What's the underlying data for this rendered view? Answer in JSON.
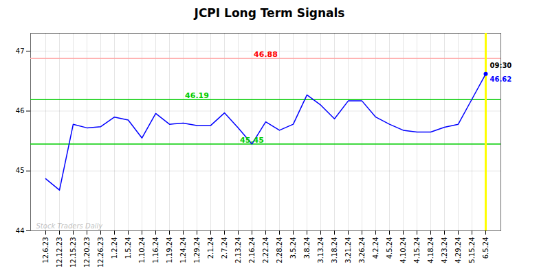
{
  "chart_data": {
    "type": "line",
    "title": "JCPI Long Term Signals",
    "categories": [
      "12.6.23",
      "12.12.23",
      "12.15.23",
      "12.20.23",
      "12.26.23",
      "1.2.24",
      "1.5.24",
      "1.10.24",
      "1.16.24",
      "1.19.24",
      "1.24.24",
      "1.29.24",
      "2.1.24",
      "2.7.24",
      "2.13.24",
      "2.16.24",
      "2.22.24",
      "2.28.24",
      "3.5.24",
      "3.8.24",
      "3.13.24",
      "3.18.24",
      "3.21.24",
      "3.26.24",
      "4.2.24",
      "4.5.24",
      "4.10.24",
      "4.15.24",
      "4.18.24",
      "4.23.24",
      "4.29.24",
      "5.15.24",
      "6.5.24"
    ],
    "values": [
      44.87,
      44.68,
      45.78,
      45.72,
      45.74,
      45.9,
      45.85,
      45.55,
      45.96,
      45.78,
      45.8,
      45.76,
      45.76,
      45.97,
      45.72,
      45.45,
      45.82,
      45.68,
      45.78,
      46.27,
      46.1,
      45.87,
      46.17,
      46.17,
      45.9,
      45.78,
      45.68,
      45.65,
      45.65,
      45.73,
      45.78,
      46.2,
      46.62
    ],
    "color": "blue",
    "ylim": [
      44,
      47.3
    ],
    "yticks": [
      44,
      45,
      46,
      47
    ],
    "grid": true,
    "reference_lines": [
      {
        "value": 46.88,
        "label": "46.88",
        "color": "#ffaaaa",
        "label_color": "red"
      },
      {
        "value": 46.19,
        "label": "46.19",
        "color": "#00cc00",
        "label_color": "#00cc00"
      },
      {
        "value": 45.45,
        "label": "45.45",
        "color": "#00cc00",
        "label_color": "#00cc00"
      }
    ],
    "marked_category": {
      "category": "6.5.24",
      "color": "yellow",
      "label": "09:30"
    },
    "last_value": {
      "value": 46.62,
      "label": "46.62",
      "color": "blue"
    },
    "watermark": "Stock Traders Daily"
  }
}
